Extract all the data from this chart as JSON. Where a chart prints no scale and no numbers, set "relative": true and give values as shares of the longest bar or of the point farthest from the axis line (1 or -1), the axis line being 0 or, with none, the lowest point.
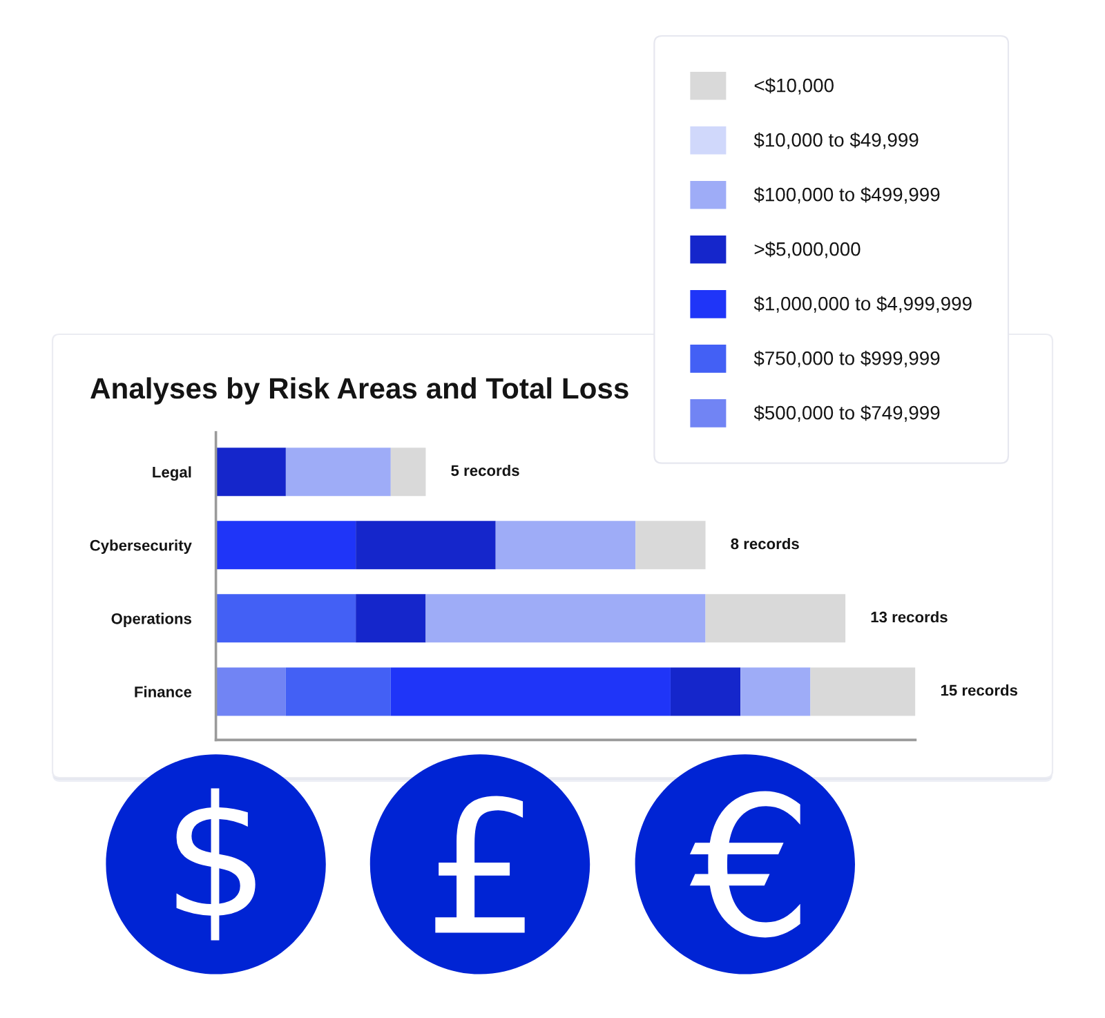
{
  "chart_data": {
    "type": "bar",
    "orientation": "horizontal",
    "stacked": true,
    "relative": true,
    "title": "Analyses by Risk Areas and Total Loss",
    "categories": [
      "Legal",
      "Cybersecurity",
      "Operations",
      "Finance"
    ],
    "series": [
      {
        "name": "$500,000 to $749,999",
        "color": "#7184f4",
        "values": [
          null,
          null,
          null,
          0.1
        ]
      },
      {
        "name": "$750,000 to $999,999",
        "color": "#4360f5",
        "values": [
          null,
          null,
          0.2,
          0.15
        ]
      },
      {
        "name": "$1,000,000 to $4,999,999",
        "color": "#1f35f8",
        "values": [
          null,
          0.2,
          null,
          0.4
        ]
      },
      {
        "name": ">$5,000,000",
        "color": "#1526cb",
        "values": [
          0.1,
          0.2,
          0.1,
          0.1
        ]
      },
      {
        "name": "$100,000 to $499,999",
        "color": "#9eacf7",
        "values": [
          0.15,
          0.2,
          0.4,
          0.1
        ]
      },
      {
        "name": "$10,000 to $49,999",
        "color": "#d0d8fb",
        "values": [
          null,
          null,
          null,
          null
        ]
      },
      {
        "name": "<$10,000",
        "color": "#d9d9d9",
        "values": [
          0.05,
          0.1,
          0.2,
          0.15
        ]
      }
    ],
    "annotations": [
      {
        "text": "5 records",
        "x": 0.3,
        "y": "Legal"
      },
      {
        "text": "8 records",
        "x": 0.7,
        "y": "Cybersecurity"
      },
      {
        "text": "13 records",
        "x": 0.9,
        "y": "Operations"
      },
      {
        "text": "15 records",
        "x": 1.0,
        "y": "Finance"
      }
    ],
    "legend": "top right"
  }
}
